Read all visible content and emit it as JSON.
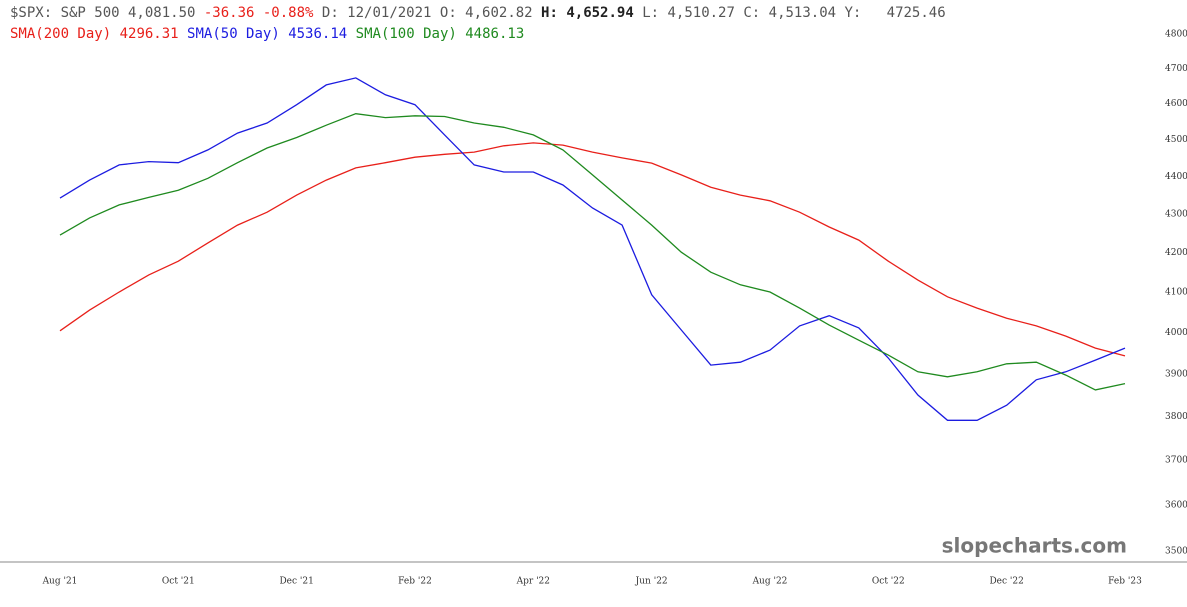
{
  "header": {
    "symbol": "$SPX: S&P 500 4,081.50",
    "change": "-36.36 -0.88%",
    "date_open": "D: 12/01/2021 O: 4,602.82",
    "high": "H: 4,652.94",
    "rest": "L: 4,510.27 C: 4,513.04 Y:   4725.46"
  },
  "chart_data": {
    "type": "line",
    "log_scale": true,
    "watermark": "slopecharts.com",
    "categories": [
      "Aug '21",
      null,
      null,
      null,
      "Oct '21",
      null,
      null,
      null,
      "Dec '21",
      null,
      null,
      null,
      "Feb '22",
      null,
      null,
      null,
      "Apr '22",
      null,
      null,
      null,
      "Jun '22",
      null,
      null,
      null,
      "Aug '22",
      null,
      null,
      null,
      "Oct '22",
      null,
      null,
      null,
      "Dec '22",
      null,
      null,
      null,
      "Feb '23"
    ],
    "ylim": [
      3500,
      4800
    ],
    "yticks": [
      3500,
      3600,
      3700,
      3800,
      3900,
      4000,
      4100,
      4200,
      4300,
      4400,
      4500,
      4600,
      4700,
      4800
    ],
    "series": [
      {
        "name": "SMA(200 Day)",
        "legend_value": "4296.31",
        "color": "#e8201a",
        "values": [
          4004,
          4055,
          4100,
          4143,
          4178,
          4225,
          4271,
          4305,
          4350,
          4390,
          4423,
          4437,
          4452,
          4460,
          4466,
          4483,
          4491,
          4485,
          4466,
          4450,
          4436,
          4404,
          4371,
          4350,
          4335,
          4305,
          4266,
          4232,
          4178,
          4130,
          4088,
          4060,
          4035,
          4016,
          3991,
          3962,
          3943
        ]
      },
      {
        "name": "SMA(50 Day)",
        "legend_value": "4536.14",
        "color": "#1c1ce0",
        "values": [
          4342,
          4390,
          4431,
          4440,
          4437,
          4472,
          4518,
          4546,
          4597,
          4653,
          4673,
          4625,
          4597,
          4513,
          4431,
          4412,
          4412,
          4377,
          4316,
          4271,
          4093,
          4006,
          3921,
          3928,
          3957,
          4016,
          4041,
          4011,
          3938,
          3850,
          3791,
          3791,
          3826,
          3886,
          3905,
          3933,
          3962
        ]
      },
      {
        "name": "SMA(100 Day)",
        "legend_value": "4486.13",
        "color": "#1f8a1f",
        "values": [
          4245,
          4290,
          4324,
          4344,
          4363,
          4395,
          4437,
          4477,
          4506,
          4540,
          4572,
          4561,
          4566,
          4564,
          4546,
          4534,
          4513,
          4472,
          4404,
          4337,
          4271,
          4201,
          4150,
          4118,
          4100,
          4060,
          4018,
          3981,
          3945,
          3905,
          3893,
          3905,
          3924,
          3928,
          3897,
          3862,
          3877
        ]
      }
    ]
  }
}
